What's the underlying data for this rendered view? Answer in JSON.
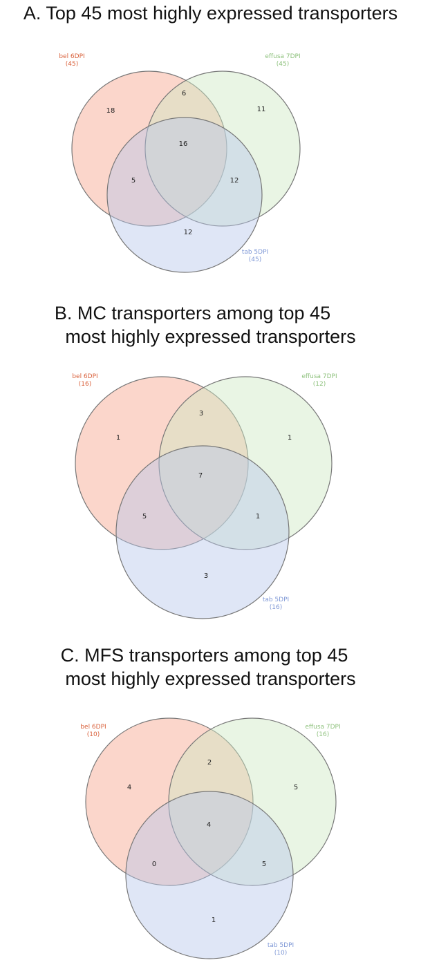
{
  "colors": {
    "set1": "#f6a58c",
    "set2": "#cfe8c3",
    "set3": "#b9c8ea",
    "set1_label": "#d9603a",
    "set2_label": "#8fc27e",
    "set3_label": "#7f98d6",
    "outline": "#777777"
  },
  "panels": [
    {
      "title_line1": "A. Top 45 most highly expressed transporters",
      "title_line2": "",
      "sets": [
        {
          "name": "bel 6DPI",
          "size": "(45)"
        },
        {
          "name": "effusa 7DPI",
          "size": "(45)"
        },
        {
          "name": "tab 5DPI",
          "size": "(45)"
        }
      ],
      "regions": {
        "only1": "18",
        "only2": "11",
        "only3": "12",
        "r12": "6",
        "r13": "5",
        "r23": "12",
        "r123": "16"
      }
    },
    {
      "title_line1": "B. MC transporters among top 45",
      "title_line2": "most highly expressed transporters",
      "sets": [
        {
          "name": "bel 6DPI",
          "size": "(16)"
        },
        {
          "name": "effusa 7DPI",
          "size": "(12)"
        },
        {
          "name": "tab 5DPI",
          "size": "(16)"
        }
      ],
      "regions": {
        "only1": "1",
        "only2": "1",
        "only3": "3",
        "r12": "3",
        "r13": "5",
        "r23": "1",
        "r123": "7"
      }
    },
    {
      "title_line1": "C. MFS transporters among top 45",
      "title_line2": "most highly expressed transporters",
      "sets": [
        {
          "name": "bel 6DPI",
          "size": "(10)"
        },
        {
          "name": "effusa 7DPI",
          "size": "(16)"
        },
        {
          "name": "tab 5DPI",
          "size": "(10)"
        }
      ],
      "regions": {
        "only1": "4",
        "only2": "5",
        "only3": "1",
        "r12": "2",
        "r13": "0",
        "r23": "5",
        "r123": "4"
      }
    }
  ]
}
